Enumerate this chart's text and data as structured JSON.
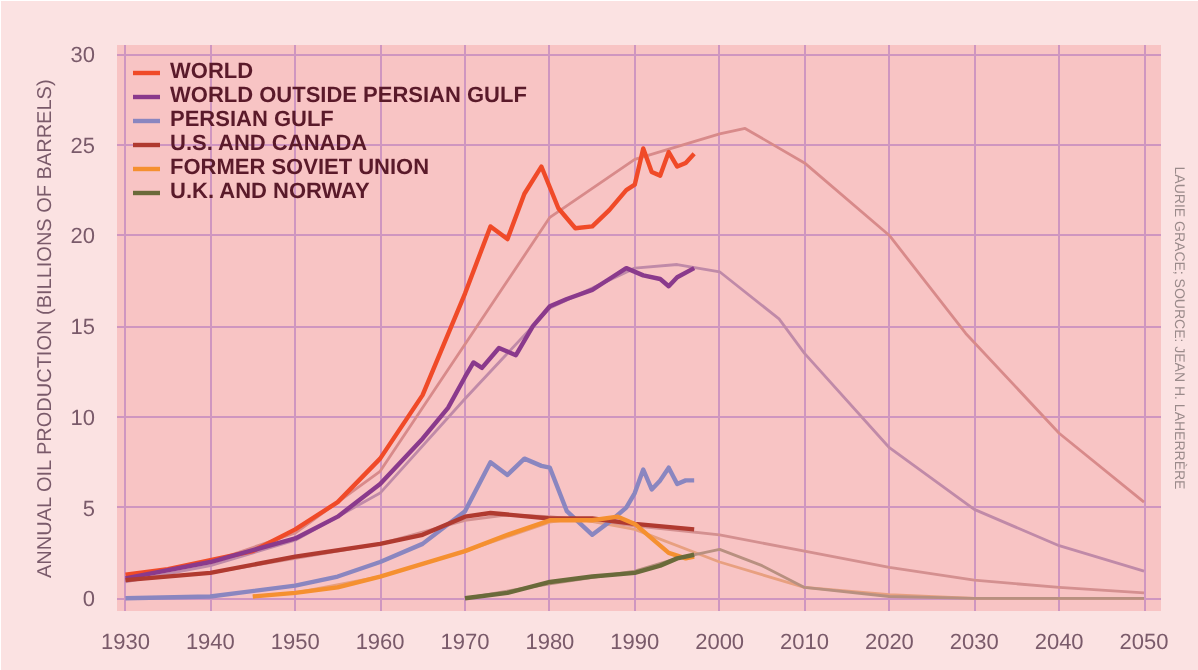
{
  "chart_data": {
    "type": "line",
    "ylabel": "ANNUAL OIL PRODUCTION (BILLIONS OF BARRELS)",
    "annotations": [
      "LAURIE GRACE; SOURCE: JEAN H. LAHERRÈRE"
    ],
    "xlim": [
      1929,
      2052
    ],
    "ylim": [
      -0.7,
      30.5
    ],
    "xticks": [
      1930,
      1940,
      1950,
      1960,
      1970,
      1980,
      1990,
      2000,
      2010,
      2020,
      2030,
      2040,
      2050
    ],
    "yticks": [
      0,
      5,
      10,
      15,
      20,
      25,
      30
    ],
    "grid": true,
    "legend": "top left",
    "line_style": "solid",
    "series": [
      {
        "color": "#d88a8a",
        "x": [
          1930,
          1940,
          1950,
          1960,
          1970,
          1980,
          1990,
          2000,
          2003,
          2010,
          2020,
          2029,
          2040,
          2050
        ],
        "values": [
          1.1,
          2.0,
          3.6,
          7.0,
          14.0,
          21.0,
          24.2,
          25.6,
          25.9,
          24.0,
          20.0,
          14.6,
          9.1,
          5.3
        ]
      },
      {
        "color": "#c08aa8",
        "x": [
          1930,
          1940,
          1950,
          1960,
          1970,
          1980,
          1990,
          1995,
          2000,
          2007,
          2010,
          2020,
          2030,
          2040,
          2050
        ],
        "values": [
          0.9,
          1.8,
          3.2,
          5.8,
          11.0,
          16.0,
          18.2,
          18.4,
          18.0,
          15.4,
          13.5,
          8.3,
          4.9,
          2.9,
          1.5
        ]
      },
      {
        "color": "#d49090",
        "x": [
          1930,
          1940,
          1950,
          1960,
          1970,
          1975,
          1980,
          1990,
          2000,
          2010,
          2020,
          2030,
          2040,
          2050
        ],
        "values": [
          1.0,
          1.4,
          2.2,
          3.0,
          4.3,
          4.6,
          4.5,
          4.0,
          3.5,
          2.6,
          1.7,
          1.0,
          0.6,
          0.3
        ]
      },
      {
        "color": "#e8a080",
        "x": [
          1945,
          1950,
          1960,
          1970,
          1980,
          1983,
          1990,
          2000,
          2010,
          2020,
          2030,
          2050
        ],
        "values": [
          0.1,
          0.3,
          1.2,
          2.6,
          4.2,
          4.4,
          3.8,
          2.0,
          0.6,
          0.2,
          0.0,
          0.0
        ]
      },
      {
        "color": "#b89080",
        "x": [
          1970,
          1980,
          1990,
          1995,
          2000,
          2005,
          2010,
          2020,
          2030,
          2050
        ],
        "values": [
          0.0,
          0.8,
          1.5,
          2.2,
          2.7,
          1.8,
          0.6,
          0.1,
          0.0,
          0.0
        ]
      },
      {
        "name": "WORLD",
        "color": "#f04a28",
        "x": [
          1930,
          1935,
          1940,
          1945,
          1950,
          1955,
          1960,
          1965,
          1970,
          1973,
          1975,
          1977,
          1979,
          1981,
          1983,
          1985,
          1987,
          1989,
          1990,
          1991,
          1992,
          1993,
          1994,
          1995,
          1996,
          1997
        ],
        "values": [
          1.3,
          1.6,
          2.1,
          2.6,
          3.8,
          5.3,
          7.7,
          11.2,
          16.8,
          20.5,
          19.8,
          22.3,
          23.8,
          21.5,
          20.4,
          20.5,
          21.4,
          22.5,
          22.8,
          24.8,
          23.5,
          23.3,
          24.6,
          23.8,
          24.0,
          24.5
        ]
      },
      {
        "name": "WORLD OUTSIDE PERSIAN GULF",
        "color": "#8a3a8c",
        "x": [
          1930,
          1940,
          1950,
          1955,
          1960,
          1965,
          1968,
          1970,
          1971,
          1972,
          1974,
          1976,
          1978,
          1980,
          1982,
          1985,
          1987,
          1989,
          1991,
          1993,
          1994,
          1995,
          1997
        ],
        "values": [
          1.1,
          2.0,
          3.3,
          4.5,
          6.3,
          8.8,
          10.5,
          12.2,
          13.0,
          12.7,
          13.8,
          13.4,
          15.0,
          16.1,
          16.5,
          17.0,
          17.6,
          18.2,
          17.8,
          17.6,
          17.2,
          17.7,
          18.2
        ]
      },
      {
        "name": "PERSIAN GULF",
        "color": "#8a86c0",
        "x": [
          1930,
          1940,
          1950,
          1955,
          1960,
          1965,
          1970,
          1973,
          1975,
          1977,
          1979,
          1980,
          1982,
          1985,
          1987,
          1989,
          1990,
          1991,
          1992,
          1993,
          1994,
          1995,
          1996,
          1997
        ],
        "values": [
          0.0,
          0.1,
          0.7,
          1.2,
          2.0,
          3.0,
          4.8,
          7.5,
          6.8,
          7.7,
          7.3,
          7.2,
          4.8,
          3.5,
          4.2,
          5.0,
          5.8,
          7.1,
          6.0,
          6.5,
          7.2,
          6.3,
          6.5,
          6.5
        ]
      },
      {
        "name": "U.S. AND CANADA",
        "color": "#b03a30",
        "x": [
          1930,
          1940,
          1950,
          1960,
          1965,
          1970,
          1973,
          1980,
          1985,
          1990,
          1997
        ],
        "values": [
          1.0,
          1.4,
          2.3,
          3.0,
          3.5,
          4.5,
          4.7,
          4.4,
          4.4,
          4.1,
          3.8
        ]
      },
      {
        "name": "FORMER SOVIET UNION",
        "color": "#f59030",
        "x": [
          1945,
          1950,
          1955,
          1960,
          1965,
          1970,
          1975,
          1980,
          1985,
          1988,
          1990,
          1992,
          1994,
          1996,
          1997
        ],
        "values": [
          0.1,
          0.3,
          0.6,
          1.2,
          1.9,
          2.6,
          3.5,
          4.3,
          4.3,
          4.5,
          4.1,
          3.3,
          2.5,
          2.2,
          2.3
        ]
      },
      {
        "name": "U.K. AND NORWAY",
        "color": "#6a6a3a",
        "x": [
          1970,
          1975,
          1980,
          1985,
          1990,
          1993,
          1995,
          1997
        ],
        "values": [
          0.0,
          0.3,
          0.9,
          1.2,
          1.4,
          1.8,
          2.2,
          2.4
        ]
      }
    ]
  }
}
